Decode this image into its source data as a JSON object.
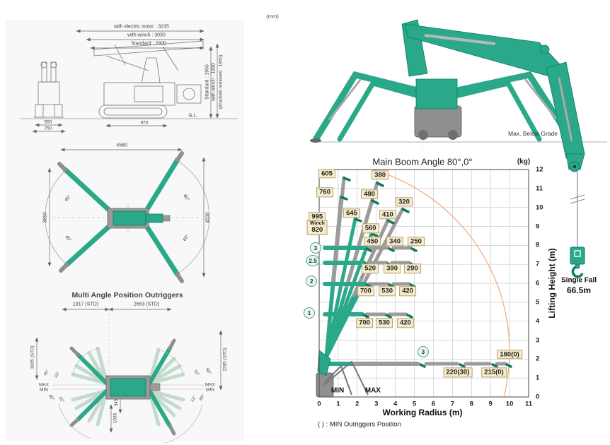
{
  "left_panel": {
    "units_label": "(mm)",
    "side_view": {
      "dim_electric_motor": "with electric motor : 3235",
      "dim_with_winch": "with winch : 3030",
      "dim_standard": "Standard : 2900",
      "dim_h_standard": "Standard : 1955",
      "dim_h_winch": "with winch : 1990",
      "dim_h_brackets": "(Brackets removed : 1955)",
      "ground_label": "G.L.",
      "front_width_inner": "550",
      "front_width_outer": "750",
      "track_length": "975"
    },
    "top_view": {
      "overall_width": "4580",
      "span_left": "3810",
      "span_right": "4530",
      "angle_front_left": "45°",
      "angle_rear_left": "45°",
      "angle_front_right": "60°",
      "angle_rear_right": "60°"
    },
    "multi_angle": {
      "title": "Multi Angle Position Outriggers",
      "dim_front": "1917 (STD)",
      "dim_rear": "2663 (STD)",
      "dim_left": "1905 (STD)",
      "dim_right": "2265 (STD)",
      "max_left": "MAX",
      "min_left": "MIN",
      "max_right": "MAX",
      "min_right": "MIN",
      "angle_lt_outer": "45°",
      "angle_lt_inner": "15°",
      "angle_rt_inner": "15°",
      "angle_rt_outer": "60°",
      "angle_lb_outer": "45°",
      "angle_lb_inner": "15°",
      "angle_rb_inner": "15°",
      "angle_rb_outer": "60°",
      "dim_hub_offset": "345",
      "dim_bottom": "1035"
    }
  },
  "right_panel": {
    "below_grade_label": "Max. Below Grade",
    "hook_label_line1": "Single Fall",
    "hook_label_line2": "66.5m"
  },
  "colors": {
    "crane_green": "#2aa88a",
    "boom_gray": "#9b9b9b",
    "label_bg": "#f7ecca",
    "label_border": "#b5a176",
    "arc_orange": "#f5ab7f"
  },
  "chart_data": {
    "type": "scatter",
    "title": "Main Boom Angle 80°,0°",
    "unit_label": "(kg)",
    "xlabel": "Working Radius (m)",
    "ylabel": "Lifting Height (m)",
    "xlim": [
      0,
      11
    ],
    "ylim": [
      0,
      12
    ],
    "x_ticks": [
      0,
      1,
      2,
      3,
      4,
      5,
      6,
      7,
      8,
      9,
      10,
      11
    ],
    "y_ticks": [
      0,
      1,
      2,
      3,
      4,
      5,
      6,
      7,
      8,
      9,
      10,
      11,
      12
    ],
    "grid": true,
    "legend_position": "none",
    "footnote": "( ) : MIN Outriggers Position",
    "load_labels": [
      {
        "text": "605",
        "x": 0.41,
        "y": 11.78
      },
      {
        "text": "380",
        "x": 3.2,
        "y": 11.7
      },
      {
        "text": "760",
        "x": 0.3,
        "y": 10.8
      },
      {
        "text": "480",
        "x": 2.64,
        "y": 10.7
      },
      {
        "text": "320",
        "x": 4.46,
        "y": 10.3
      },
      {
        "text": "645",
        "x": 1.71,
        "y": 9.7
      },
      {
        "text": "410",
        "x": 3.6,
        "y": 9.63
      },
      {
        "text": "995",
        "x": -0.1,
        "y": 9.52
      },
      {
        "text": "Winch\n820",
        "x": -0.1,
        "y": 8.93
      },
      {
        "text": "560",
        "x": 2.7,
        "y": 8.9
      },
      {
        "text": "450",
        "x": 2.8,
        "y": 8.2
      },
      {
        "text": "340",
        "x": 3.98,
        "y": 8.2
      },
      {
        "text": "250",
        "x": 5.09,
        "y": 8.2
      },
      {
        "text": "520",
        "x": 2.68,
        "y": 6.77
      },
      {
        "text": "390",
        "x": 3.83,
        "y": 6.77
      },
      {
        "text": "290",
        "x": 4.9,
        "y": 6.77
      },
      {
        "text": "700",
        "x": 2.45,
        "y": 5.58
      },
      {
        "text": "530",
        "x": 3.57,
        "y": 5.58
      },
      {
        "text": "420",
        "x": 4.65,
        "y": 5.58
      },
      {
        "text": "700",
        "x": 2.38,
        "y": 3.9
      },
      {
        "text": "530",
        "x": 3.42,
        "y": 3.9
      },
      {
        "text": "420",
        "x": 4.53,
        "y": 3.9
      },
      {
        "text": "180(0)",
        "x": 10.0,
        "y": 2.24
      },
      {
        "text": "220(30)",
        "x": 7.28,
        "y": 1.3
      },
      {
        "text": "215(0)",
        "x": 9.18,
        "y": 1.3
      }
    ],
    "stage_markers": [
      {
        "text": "3",
        "x": -0.19,
        "y": 7.85
      },
      {
        "text": "2.5",
        "x": -0.33,
        "y": 7.18
      },
      {
        "text": "2",
        "x": -0.4,
        "y": 6.1
      },
      {
        "text": "1",
        "x": -0.52,
        "y": 4.43
      },
      {
        "text": "3",
        "x": 5.46,
        "y": 2.38
      }
    ],
    "floor_labels": [
      {
        "text": "MIN",
        "x": 0.97,
        "y": 0.32
      },
      {
        "text": "MAX",
        "x": 2.82,
        "y": 0.32
      }
    ],
    "envelope_arc_points": [
      [
        2.8,
        12
      ],
      [
        9.47,
        5.6
      ],
      [
        9.71,
        0
      ]
    ]
  }
}
